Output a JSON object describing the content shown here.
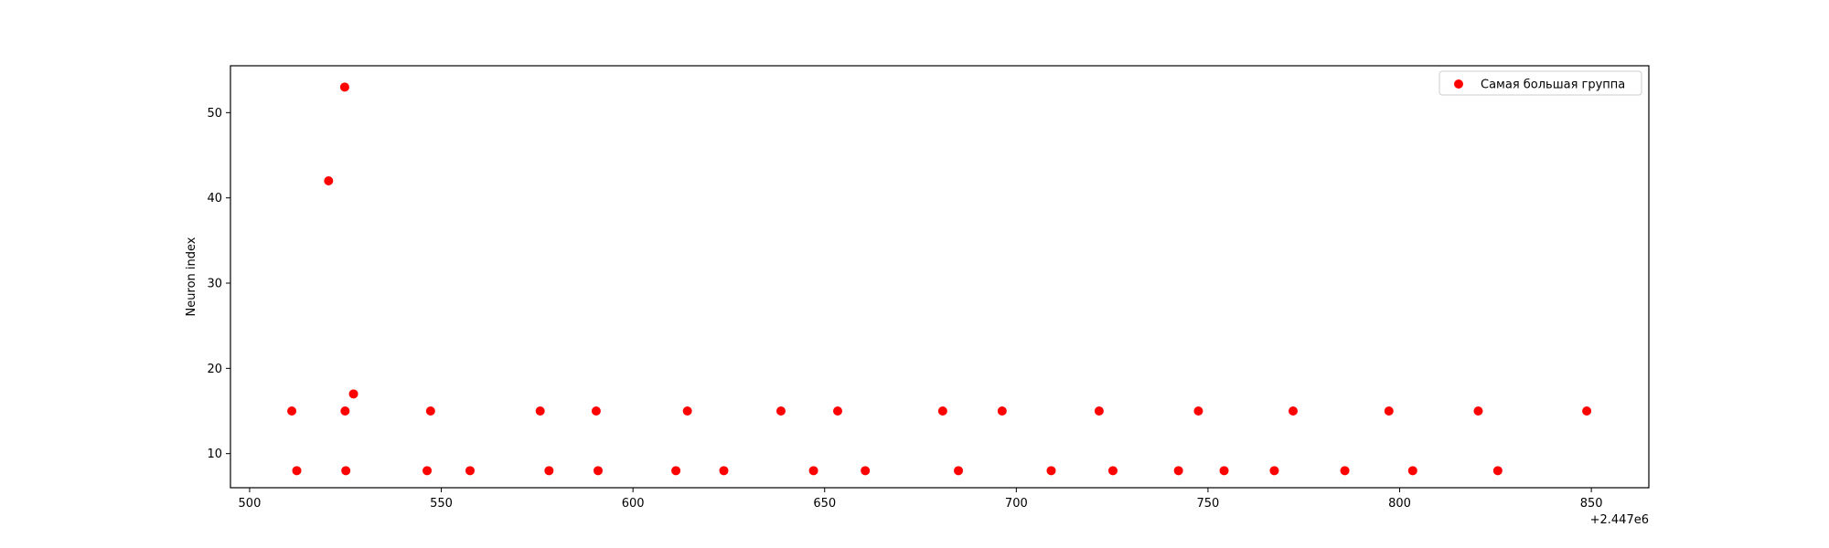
{
  "chart_data": {
    "type": "scatter",
    "title": "",
    "xlabel": "",
    "ylabel": "Neuron index",
    "x_offset_label": "+2.447e6",
    "xlim": [
      495,
      865
    ],
    "ylim": [
      6,
      55.5
    ],
    "xticks": [
      500,
      550,
      600,
      650,
      700,
      750,
      800,
      850
    ],
    "yticks": [
      10,
      20,
      30,
      40,
      50
    ],
    "grid": false,
    "legend_position": "top-right",
    "series": [
      {
        "name": "Самая большая группа",
        "color": "#ff0000",
        "x": [
          511,
          512.3,
          520.6,
          524.8,
          524.9,
          525.1,
          527.1,
          546.3,
          547.2,
          557.5,
          575.8,
          578.1,
          590.4,
          590.9,
          611.2,
          614.2,
          623.7,
          638.6,
          647.1,
          653.4,
          660.6,
          680.8,
          684.9,
          696.3,
          709.1,
          721.6,
          725.2,
          742.3,
          747.5,
          754.2,
          767.3,
          772.2,
          785.7,
          797.2,
          803.4,
          820.5,
          825.6,
          848.8
        ],
        "y": [
          15,
          8,
          42,
          53,
          15,
          8,
          17,
          8,
          15,
          8,
          15,
          8,
          15,
          8,
          8,
          15,
          8,
          15,
          8,
          15,
          8,
          15,
          8,
          15,
          8,
          15,
          8,
          8,
          15,
          8,
          8,
          15,
          8,
          15,
          8,
          15,
          8,
          15
        ]
      }
    ]
  }
}
